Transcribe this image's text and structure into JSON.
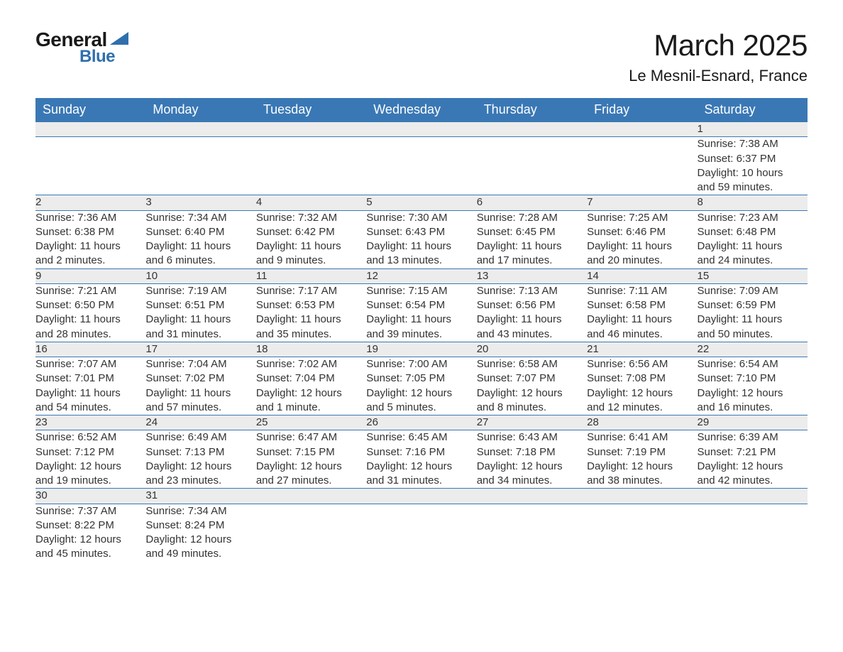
{
  "logo": {
    "text1": "General",
    "text2": "Blue",
    "accent_color": "#2f6fad"
  },
  "title": "March 2025",
  "location": "Le Mesnil-Esnard, France",
  "header_bg": "#3a78b5",
  "daynum_bg": "#ececec",
  "row_border": "#3a78b5",
  "text_color": "#333333",
  "font_size_body": 15,
  "font_size_header": 18,
  "font_size_title": 42,
  "font_size_location": 22,
  "daynames": [
    "Sunday",
    "Monday",
    "Tuesday",
    "Wednesday",
    "Thursday",
    "Friday",
    "Saturday"
  ],
  "weeks": [
    [
      null,
      null,
      null,
      null,
      null,
      null,
      {
        "n": "1",
        "sr": "Sunrise: 7:38 AM",
        "ss": "Sunset: 6:37 PM",
        "dl1": "Daylight: 10 hours",
        "dl2": "and 59 minutes."
      }
    ],
    [
      {
        "n": "2",
        "sr": "Sunrise: 7:36 AM",
        "ss": "Sunset: 6:38 PM",
        "dl1": "Daylight: 11 hours",
        "dl2": "and 2 minutes."
      },
      {
        "n": "3",
        "sr": "Sunrise: 7:34 AM",
        "ss": "Sunset: 6:40 PM",
        "dl1": "Daylight: 11 hours",
        "dl2": "and 6 minutes."
      },
      {
        "n": "4",
        "sr": "Sunrise: 7:32 AM",
        "ss": "Sunset: 6:42 PM",
        "dl1": "Daylight: 11 hours",
        "dl2": "and 9 minutes."
      },
      {
        "n": "5",
        "sr": "Sunrise: 7:30 AM",
        "ss": "Sunset: 6:43 PM",
        "dl1": "Daylight: 11 hours",
        "dl2": "and 13 minutes."
      },
      {
        "n": "6",
        "sr": "Sunrise: 7:28 AM",
        "ss": "Sunset: 6:45 PM",
        "dl1": "Daylight: 11 hours",
        "dl2": "and 17 minutes."
      },
      {
        "n": "7",
        "sr": "Sunrise: 7:25 AM",
        "ss": "Sunset: 6:46 PM",
        "dl1": "Daylight: 11 hours",
        "dl2": "and 20 minutes."
      },
      {
        "n": "8",
        "sr": "Sunrise: 7:23 AM",
        "ss": "Sunset: 6:48 PM",
        "dl1": "Daylight: 11 hours",
        "dl2": "and 24 minutes."
      }
    ],
    [
      {
        "n": "9",
        "sr": "Sunrise: 7:21 AM",
        "ss": "Sunset: 6:50 PM",
        "dl1": "Daylight: 11 hours",
        "dl2": "and 28 minutes."
      },
      {
        "n": "10",
        "sr": "Sunrise: 7:19 AM",
        "ss": "Sunset: 6:51 PM",
        "dl1": "Daylight: 11 hours",
        "dl2": "and 31 minutes."
      },
      {
        "n": "11",
        "sr": "Sunrise: 7:17 AM",
        "ss": "Sunset: 6:53 PM",
        "dl1": "Daylight: 11 hours",
        "dl2": "and 35 minutes."
      },
      {
        "n": "12",
        "sr": "Sunrise: 7:15 AM",
        "ss": "Sunset: 6:54 PM",
        "dl1": "Daylight: 11 hours",
        "dl2": "and 39 minutes."
      },
      {
        "n": "13",
        "sr": "Sunrise: 7:13 AM",
        "ss": "Sunset: 6:56 PM",
        "dl1": "Daylight: 11 hours",
        "dl2": "and 43 minutes."
      },
      {
        "n": "14",
        "sr": "Sunrise: 7:11 AM",
        "ss": "Sunset: 6:58 PM",
        "dl1": "Daylight: 11 hours",
        "dl2": "and 46 minutes."
      },
      {
        "n": "15",
        "sr": "Sunrise: 7:09 AM",
        "ss": "Sunset: 6:59 PM",
        "dl1": "Daylight: 11 hours",
        "dl2": "and 50 minutes."
      }
    ],
    [
      {
        "n": "16",
        "sr": "Sunrise: 7:07 AM",
        "ss": "Sunset: 7:01 PM",
        "dl1": "Daylight: 11 hours",
        "dl2": "and 54 minutes."
      },
      {
        "n": "17",
        "sr": "Sunrise: 7:04 AM",
        "ss": "Sunset: 7:02 PM",
        "dl1": "Daylight: 11 hours",
        "dl2": "and 57 minutes."
      },
      {
        "n": "18",
        "sr": "Sunrise: 7:02 AM",
        "ss": "Sunset: 7:04 PM",
        "dl1": "Daylight: 12 hours",
        "dl2": "and 1 minute."
      },
      {
        "n": "19",
        "sr": "Sunrise: 7:00 AM",
        "ss": "Sunset: 7:05 PM",
        "dl1": "Daylight: 12 hours",
        "dl2": "and 5 minutes."
      },
      {
        "n": "20",
        "sr": "Sunrise: 6:58 AM",
        "ss": "Sunset: 7:07 PM",
        "dl1": "Daylight: 12 hours",
        "dl2": "and 8 minutes."
      },
      {
        "n": "21",
        "sr": "Sunrise: 6:56 AM",
        "ss": "Sunset: 7:08 PM",
        "dl1": "Daylight: 12 hours",
        "dl2": "and 12 minutes."
      },
      {
        "n": "22",
        "sr": "Sunrise: 6:54 AM",
        "ss": "Sunset: 7:10 PM",
        "dl1": "Daylight: 12 hours",
        "dl2": "and 16 minutes."
      }
    ],
    [
      {
        "n": "23",
        "sr": "Sunrise: 6:52 AM",
        "ss": "Sunset: 7:12 PM",
        "dl1": "Daylight: 12 hours",
        "dl2": "and 19 minutes."
      },
      {
        "n": "24",
        "sr": "Sunrise: 6:49 AM",
        "ss": "Sunset: 7:13 PM",
        "dl1": "Daylight: 12 hours",
        "dl2": "and 23 minutes."
      },
      {
        "n": "25",
        "sr": "Sunrise: 6:47 AM",
        "ss": "Sunset: 7:15 PM",
        "dl1": "Daylight: 12 hours",
        "dl2": "and 27 minutes."
      },
      {
        "n": "26",
        "sr": "Sunrise: 6:45 AM",
        "ss": "Sunset: 7:16 PM",
        "dl1": "Daylight: 12 hours",
        "dl2": "and 31 minutes."
      },
      {
        "n": "27",
        "sr": "Sunrise: 6:43 AM",
        "ss": "Sunset: 7:18 PM",
        "dl1": "Daylight: 12 hours",
        "dl2": "and 34 minutes."
      },
      {
        "n": "28",
        "sr": "Sunrise: 6:41 AM",
        "ss": "Sunset: 7:19 PM",
        "dl1": "Daylight: 12 hours",
        "dl2": "and 38 minutes."
      },
      {
        "n": "29",
        "sr": "Sunrise: 6:39 AM",
        "ss": "Sunset: 7:21 PM",
        "dl1": "Daylight: 12 hours",
        "dl2": "and 42 minutes."
      }
    ],
    [
      {
        "n": "30",
        "sr": "Sunrise: 7:37 AM",
        "ss": "Sunset: 8:22 PM",
        "dl1": "Daylight: 12 hours",
        "dl2": "and 45 minutes."
      },
      {
        "n": "31",
        "sr": "Sunrise: 7:34 AM",
        "ss": "Sunset: 8:24 PM",
        "dl1": "Daylight: 12 hours",
        "dl2": "and 49 minutes."
      },
      null,
      null,
      null,
      null,
      null
    ]
  ]
}
